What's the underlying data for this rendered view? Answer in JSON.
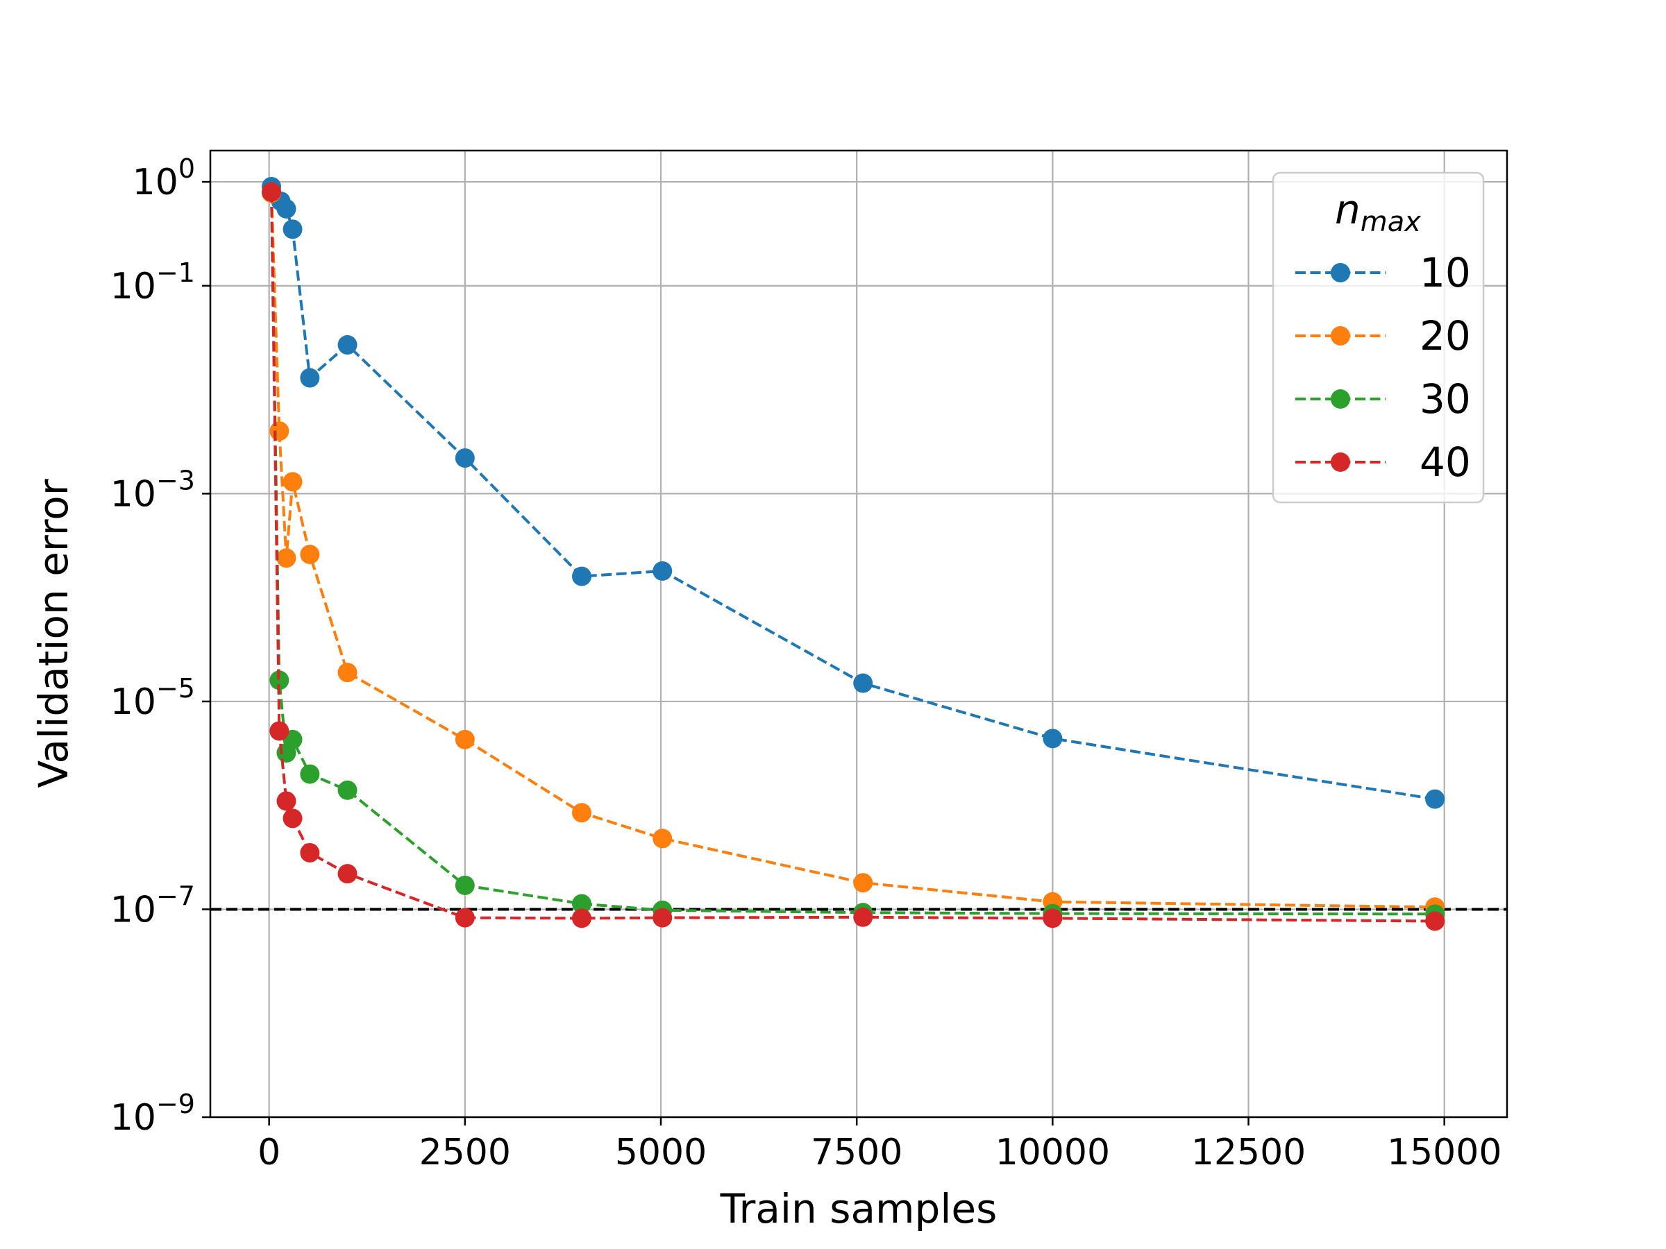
{
  "chart_data": {
    "type": "line",
    "title": "",
    "xlabel": "Train samples",
    "ylabel": "Validation error",
    "yscale": "log",
    "xlim": [
      -750,
      15800
    ],
    "ylim": [
      1e-09,
      2.0
    ],
    "x_ticks": [
      0,
      2500,
      5000,
      7500,
      10000,
      12500,
      15000
    ],
    "x_tick_labels": [
      "0",
      "2500",
      "5000",
      "7500",
      "10000",
      "12500",
      "15000"
    ],
    "y_ticks": [
      {
        "value": 1,
        "base": "10",
        "exp": "0"
      },
      {
        "value": 0.1,
        "base": "10",
        "exp": "−1"
      },
      {
        "value": 0.001,
        "base": "10",
        "exp": "−3"
      },
      {
        "value": 1e-05,
        "base": "10",
        "exp": "−5"
      },
      {
        "value": 1e-07,
        "base": "10",
        "exp": "−7"
      },
      {
        "value": 1e-09,
        "base": "10",
        "exp": "−9"
      }
    ],
    "grid": true,
    "legend": {
      "title_main": "n",
      "title_sub": "max",
      "placement": "top-right"
    },
    "reference_line": {
      "y": 1e-07,
      "style": "dashed",
      "color": "#000000"
    },
    "series": [
      {
        "name": "10",
        "color": "#1f77b4",
        "points": [
          [
            30,
            0.9
          ],
          [
            150,
            0.65
          ],
          [
            220,
            0.55
          ],
          [
            300,
            0.35
          ],
          [
            520,
            0.013
          ],
          [
            1000,
            0.027
          ],
          [
            2500,
            0.0022
          ],
          [
            3990,
            0.00016
          ],
          [
            5020,
            0.00018
          ],
          [
            7580,
            1.5e-05
          ],
          [
            10000,
            4.4e-06
          ],
          [
            14880,
            1.15e-06
          ]
        ]
      },
      {
        "name": "20",
        "color": "#ff7f0e",
        "points": [
          [
            30,
            0.78
          ],
          [
            130,
            0.004
          ],
          [
            220,
            0.00024
          ],
          [
            300,
            0.0013
          ],
          [
            520,
            0.00026
          ],
          [
            1000,
            1.9e-05
          ],
          [
            2500,
            4.3e-06
          ],
          [
            3990,
            8.5e-07
          ],
          [
            5020,
            4.8e-07
          ],
          [
            7580,
            1.8e-07
          ],
          [
            10000,
            1.18e-07
          ],
          [
            14880,
            1.05e-07
          ]
        ]
      },
      {
        "name": "30",
        "color": "#2ca02c",
        "points": [
          [
            30,
            0.8
          ],
          [
            130,
            1.6e-05
          ],
          [
            220,
            3.2e-06
          ],
          [
            300,
            4.3e-06
          ],
          [
            520,
            2e-06
          ],
          [
            1000,
            1.4e-06
          ],
          [
            2500,
            1.7e-07
          ],
          [
            3990,
            1.13e-07
          ],
          [
            5020,
            9.8e-08
          ],
          [
            7580,
            9.3e-08
          ],
          [
            10000,
            9.1e-08
          ],
          [
            14880,
            9e-08
          ]
        ]
      },
      {
        "name": "40",
        "color": "#d62728",
        "points": [
          [
            30,
            0.8
          ],
          [
            130,
            5.2e-06
          ],
          [
            220,
            1.1e-06
          ],
          [
            300,
            7.5e-07
          ],
          [
            520,
            3.5e-07
          ],
          [
            1000,
            2.2e-07
          ],
          [
            2500,
            8.3e-08
          ],
          [
            3990,
            8.2e-08
          ],
          [
            5020,
            8.3e-08
          ],
          [
            7580,
            8.4e-08
          ],
          [
            10000,
            8.2e-08
          ],
          [
            14880,
            7.7e-08
          ]
        ]
      }
    ]
  }
}
